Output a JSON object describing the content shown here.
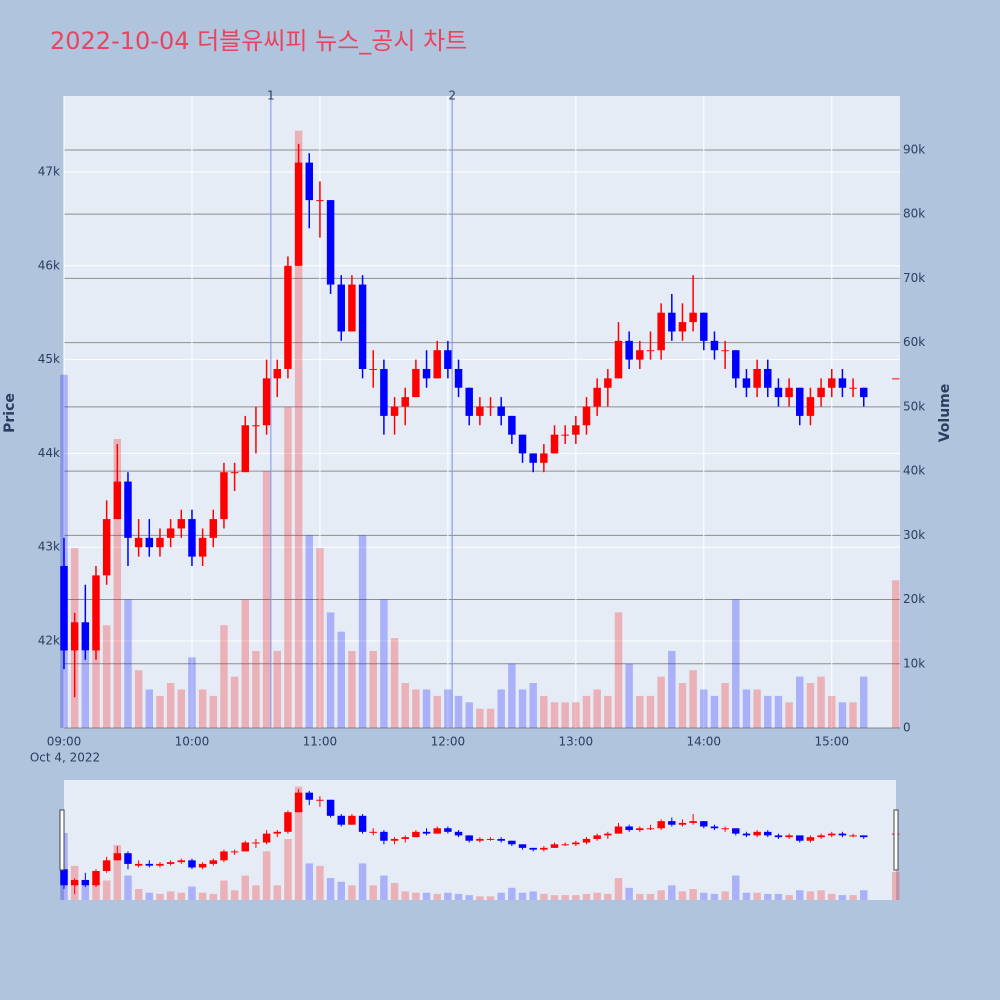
{
  "chart_data": {
    "type": "candlestick",
    "title": "2022-10-04 더블유씨피 뉴스_공시 차트",
    "ylabel": "Price",
    "y2label": "Volume",
    "x_date_label": "Oct 4, 2022",
    "increasing_color": "#ff0000",
    "decreasing_color": "#0000ff",
    "x": [
      "09:00",
      "09:05",
      "09:10",
      "09:15",
      "09:20",
      "09:25",
      "09:30",
      "09:35",
      "09:40",
      "09:45",
      "09:50",
      "09:55",
      "10:00",
      "10:05",
      "10:10",
      "10:15",
      "10:20",
      "10:25",
      "10:30",
      "10:35",
      "10:40",
      "10:45",
      "10:50",
      "10:55",
      "11:00",
      "11:05",
      "11:10",
      "11:15",
      "11:20",
      "11:25",
      "11:30",
      "11:35",
      "11:40",
      "11:45",
      "11:50",
      "11:55",
      "12:00",
      "12:05",
      "12:10",
      "12:15",
      "12:20",
      "12:25",
      "12:30",
      "12:35",
      "12:40",
      "12:45",
      "12:50",
      "12:55",
      "13:00",
      "13:05",
      "13:10",
      "13:15",
      "13:20",
      "13:25",
      "13:30",
      "13:35",
      "13:40",
      "13:45",
      "13:50",
      "13:55",
      "14:00",
      "14:05",
      "14:10",
      "14:15",
      "14:20",
      "14:25",
      "14:30",
      "14:35",
      "14:40",
      "14:45",
      "14:50",
      "14:55",
      "15:00",
      "15:05",
      "15:10",
      "15:15",
      "15:30"
    ],
    "open": [
      42800,
      41900,
      42200,
      41900,
      42700,
      43300,
      43700,
      43000,
      43100,
      43000,
      43100,
      43200,
      43300,
      42900,
      43100,
      43300,
      43800,
      43800,
      44300,
      44300,
      44800,
      44900,
      46000,
      47100,
      46700,
      46700,
      45800,
      45300,
      45800,
      44900,
      44900,
      44400,
      44500,
      44600,
      44900,
      44800,
      45100,
      44900,
      44700,
      44400,
      44500,
      44500,
      44400,
      44200,
      44000,
      43900,
      44000,
      44200,
      44200,
      44300,
      44500,
      44700,
      44800,
      45200,
      45000,
      45100,
      45100,
      45500,
      45300,
      45400,
      45500,
      45200,
      45100,
      45100,
      44800,
      44700,
      44900,
      44700,
      44600,
      44700,
      44400,
      44600,
      44700,
      44800,
      44700,
      44700,
      44800
    ],
    "high": [
      43100,
      42300,
      42600,
      42800,
      43500,
      44100,
      43800,
      43300,
      43300,
      43200,
      43300,
      43400,
      43400,
      43200,
      43400,
      43900,
      43900,
      44400,
      44500,
      45000,
      45000,
      46100,
      47300,
      47200,
      46900,
      46700,
      45900,
      45900,
      45900,
      45100,
      45000,
      44600,
      44700,
      45000,
      45100,
      45200,
      45200,
      45000,
      44700,
      44600,
      44600,
      44600,
      44400,
      44200,
      44000,
      44100,
      44300,
      44300,
      44400,
      44600,
      44800,
      44900,
      45400,
      45300,
      45200,
      45300,
      45600,
      45700,
      45600,
      45900,
      45500,
      45300,
      45200,
      45100,
      44900,
      45000,
      45000,
      44800,
      44800,
      44700,
      44700,
      44800,
      44900,
      44900,
      44800,
      44700,
      44800
    ],
    "low": [
      41700,
      41400,
      41800,
      41800,
      42600,
      43300,
      42800,
      42900,
      42900,
      42900,
      43000,
      43100,
      42800,
      42800,
      43000,
      43200,
      43600,
      43800,
      44000,
      44200,
      44600,
      44800,
      46000,
      46400,
      46300,
      45700,
      45200,
      45300,
      44800,
      44700,
      44200,
      44200,
      44300,
      44600,
      44700,
      44800,
      44800,
      44600,
      44300,
      44300,
      44400,
      44300,
      44100,
      43900,
      43800,
      43800,
      44000,
      44100,
      44100,
      44200,
      44400,
      44500,
      44800,
      44900,
      44900,
      45000,
      45000,
      45200,
      45200,
      45300,
      45100,
      45000,
      44900,
      44700,
      44600,
      44600,
      44600,
      44500,
      44500,
      44300,
      44300,
      44500,
      44600,
      44600,
      44600,
      44500,
      44800
    ],
    "close": [
      41900,
      42200,
      41900,
      42700,
      43300,
      43700,
      43100,
      43100,
      43000,
      43100,
      43200,
      43300,
      42900,
      43100,
      43300,
      43800,
      43800,
      44300,
      44300,
      44800,
      44900,
      46000,
      47100,
      46700,
      46700,
      45800,
      45300,
      45800,
      44900,
      44900,
      44400,
      44500,
      44600,
      44900,
      44800,
      45100,
      44900,
      44700,
      44400,
      44500,
      44500,
      44400,
      44200,
      44000,
      43900,
      44000,
      44200,
      44200,
      44300,
      44500,
      44700,
      44800,
      45200,
      45000,
      45100,
      45100,
      45500,
      45300,
      45400,
      45500,
      45200,
      45100,
      45100,
      44800,
      44700,
      44900,
      44700,
      44600,
      44700,
      44400,
      44600,
      44700,
      44800,
      44700,
      44700,
      44600,
      44800
    ],
    "volume": [
      55000,
      28000,
      12000,
      14000,
      16000,
      45000,
      20000,
      9000,
      6000,
      5000,
      7000,
      6000,
      11000,
      6000,
      5000,
      16000,
      8000,
      20000,
      12000,
      40000,
      12000,
      50000,
      93000,
      30000,
      28000,
      18000,
      15000,
      12000,
      30000,
      12000,
      20000,
      14000,
      7000,
      6000,
      6000,
      5000,
      6000,
      5000,
      4000,
      3000,
      3000,
      6000,
      10000,
      6000,
      7000,
      5000,
      4000,
      4000,
      4000,
      5000,
      6000,
      5000,
      18000,
      10000,
      5000,
      5000,
      8000,
      12000,
      7000,
      9000,
      6000,
      5000,
      7000,
      20000,
      6000,
      6000,
      5000,
      5000,
      4000,
      8000,
      7000,
      8000,
      5000,
      4000,
      4000,
      8000,
      23000
    ],
    "xlim": [
      "09:00",
      "15:32"
    ],
    "xticks": [
      "09:00",
      "10:00",
      "11:00",
      "12:00",
      "13:00",
      "14:00",
      "15:00"
    ],
    "ylim": [
      41073,
      47810
    ],
    "yticks": [
      {
        "value": 42000,
        "label": "42k"
      },
      {
        "value": 43000,
        "label": "43k"
      },
      {
        "value": 44000,
        "label": "44k"
      },
      {
        "value": 45000,
        "label": "45k"
      },
      {
        "value": 46000,
        "label": "46k"
      },
      {
        "value": 47000,
        "label": "47k"
      }
    ],
    "y2lim": [
      0,
      98400
    ],
    "y2ticks": [
      0,
      {
        "value": 10000,
        "label": "10k"
      },
      {
        "value": 20000,
        "label": "20k"
      },
      {
        "value": 30000,
        "label": "30k"
      },
      {
        "value": 40000,
        "label": "40k"
      },
      {
        "value": 50000,
        "label": "50k"
      },
      {
        "value": 60000,
        "label": "60k"
      },
      {
        "value": 70000,
        "label": "70k"
      },
      {
        "value": 80000,
        "label": "80k"
      },
      {
        "value": 90000,
        "label": "90k"
      }
    ],
    "vlines": [
      {
        "x": "10:37",
        "label": "1"
      },
      {
        "x": "12:02",
        "label": "2"
      }
    ],
    "rangeslider": true
  }
}
